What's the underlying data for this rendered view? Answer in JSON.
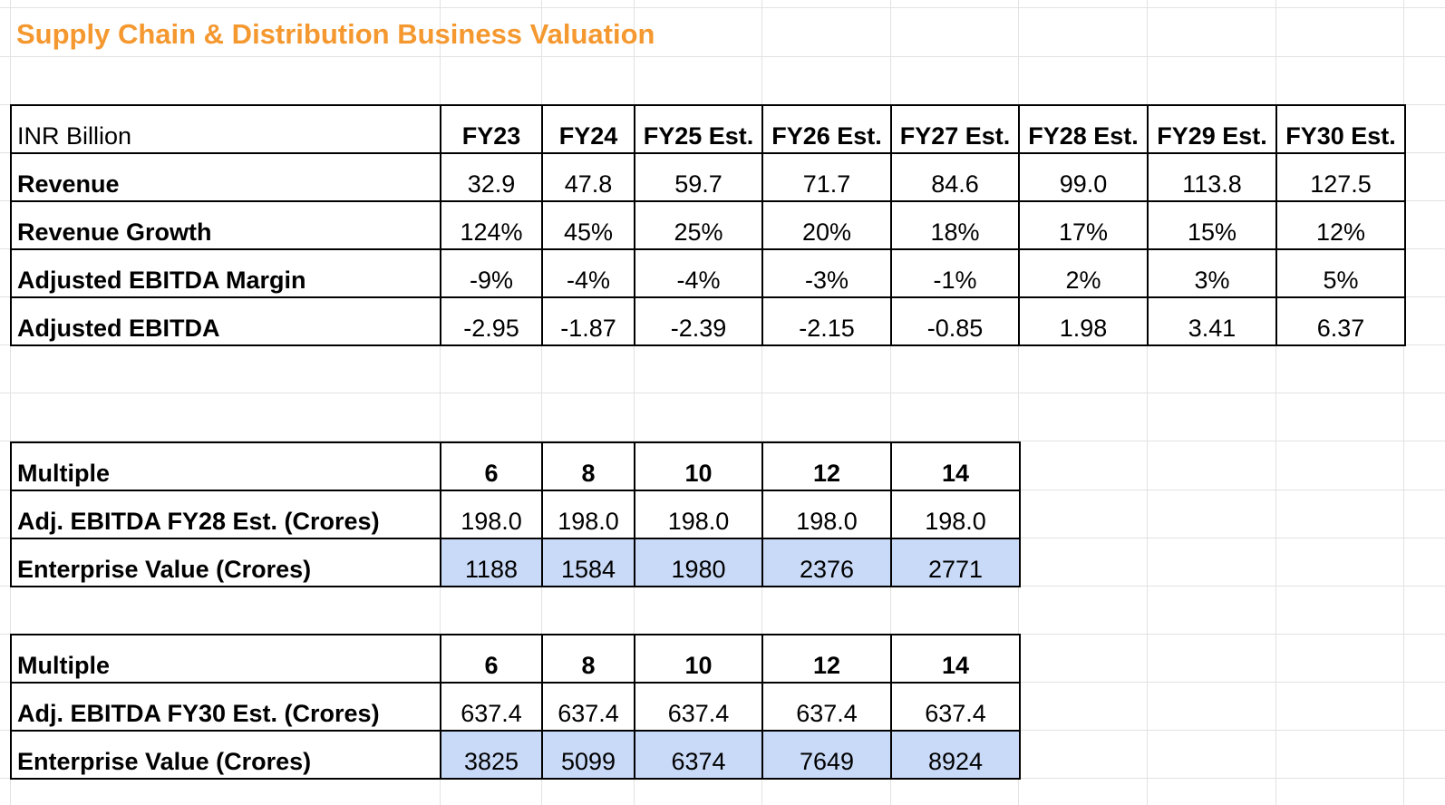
{
  "title": "Supply Chain & Distribution Business Valuation",
  "colors": {
    "title": "#f4982f",
    "highlight": "#c9daf8",
    "gridline": "#e2e2e2"
  },
  "projection": {
    "corner": "INR Billion",
    "headers": [
      "FY23",
      "FY24",
      "FY25 Est.",
      "FY26 Est.",
      "FY27 Est.",
      "FY28 Est.",
      "FY29 Est.",
      "FY30 Est."
    ],
    "rows": [
      {
        "label": "Revenue",
        "values": [
          "32.9",
          "47.8",
          "59.7",
          "71.7",
          "84.6",
          "99.0",
          "113.8",
          "127.5"
        ]
      },
      {
        "label": "Revenue Growth",
        "values": [
          "124%",
          "45%",
          "25%",
          "20%",
          "18%",
          "17%",
          "15%",
          "12%"
        ]
      },
      {
        "label": "Adjusted EBITDA Margin",
        "values": [
          "-9%",
          "-4%",
          "-4%",
          "-3%",
          "-1%",
          "2%",
          "3%",
          "5%"
        ]
      },
      {
        "label": "Adjusted EBITDA",
        "values": [
          "-2.95",
          "-1.87",
          "-2.39",
          "-2.15",
          "-0.85",
          "1.98",
          "3.41",
          "6.37"
        ]
      }
    ]
  },
  "valuation_fy28": {
    "multiple_label": "Multiple",
    "multiples": [
      "6",
      "8",
      "10",
      "12",
      "14"
    ],
    "ebitda_label": "Adj. EBITDA FY28 Est. (Crores)",
    "ebitda": [
      "198.0",
      "198.0",
      "198.0",
      "198.0",
      "198.0"
    ],
    "ev_label": "Enterprise Value (Crores)",
    "ev": [
      "1188",
      "1584",
      "1980",
      "2376",
      "2771"
    ]
  },
  "valuation_fy30": {
    "multiple_label": "Multiple",
    "multiples": [
      "6",
      "8",
      "10",
      "12",
      "14"
    ],
    "ebitda_label": "Adj. EBITDA FY30 Est. (Crores)",
    "ebitda": [
      "637.4",
      "637.4",
      "637.4",
      "637.4",
      "637.4"
    ],
    "ev_label": "Enterprise Value (Crores)",
    "ev": [
      "3825",
      "5099",
      "6374",
      "7649",
      "8924"
    ]
  }
}
